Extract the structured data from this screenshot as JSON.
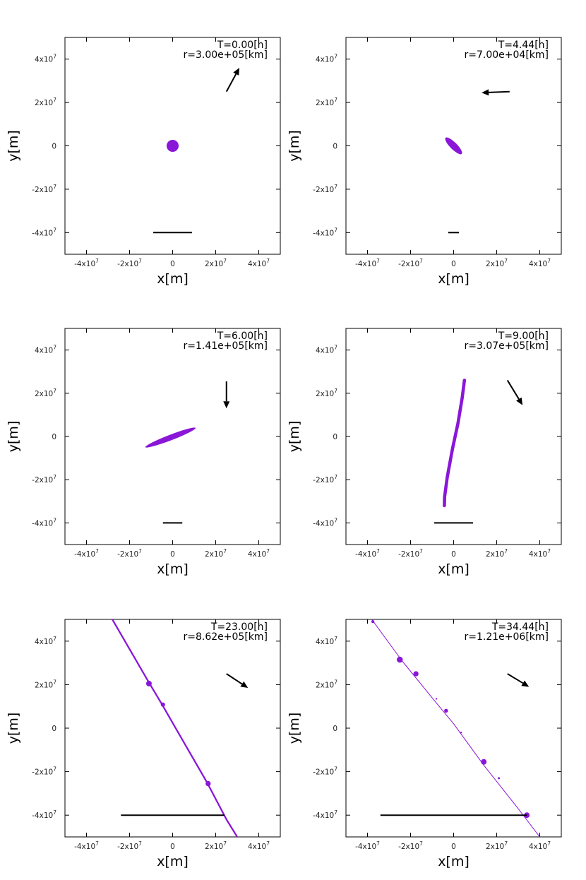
{
  "colors": {
    "body": "#8a16d8",
    "line": "#000000",
    "frame": "#000000"
  },
  "chart_data": [
    {
      "type": "scatter",
      "title_lines": [
        "T=0.00[h]",
        "r=3.00e+05[km]"
      ],
      "xlabel": "x[m]",
      "ylabel": "y[m]",
      "xlim": [
        -50000000,
        50000000
      ],
      "ylim": [
        -50000000,
        50000000
      ],
      "xticks": [
        -40000000,
        -20000000,
        0,
        20000000,
        40000000
      ],
      "yticks": [
        -40000000,
        -20000000,
        0,
        20000000,
        40000000
      ],
      "xtick_labels": [
        {
          "m": "-4x10",
          "e": "7"
        },
        {
          "m": "-2x10",
          "e": "7"
        },
        {
          "m": "0",
          "e": ""
        },
        {
          "m": "2x10",
          "e": "7"
        },
        {
          "m": "4x10",
          "e": "7"
        }
      ],
      "ytick_labels": [
        {
          "m": "-4x10",
          "e": "7"
        },
        {
          "m": "-2x10",
          "e": "7"
        },
        {
          "m": "0",
          "e": ""
        },
        {
          "m": "2x10",
          "e": "7"
        },
        {
          "m": "4x10",
          "e": "7"
        }
      ],
      "arrow": {
        "from": [
          25000000,
          25000000
        ],
        "to": [
          31000000,
          36000000
        ]
      },
      "scale_bar": {
        "x": [
          -9000000,
          9000000
        ],
        "y": -40000000
      },
      "series": [
        {
          "kind": "blob",
          "cx": 0,
          "cy": 0,
          "rx": 2800000,
          "ry": 2800000,
          "angle_deg": 0
        }
      ]
    },
    {
      "type": "scatter",
      "title_lines": [
        "T=4.44[h]",
        "r=7.00e+04[km]"
      ],
      "xlabel": "x[m]",
      "ylabel": "y[m]",
      "xlim": [
        -50000000,
        50000000
      ],
      "ylim": [
        -50000000,
        50000000
      ],
      "xticks": [
        -40000000,
        -20000000,
        0,
        20000000,
        40000000
      ],
      "yticks": [
        -40000000,
        -20000000,
        0,
        20000000,
        40000000
      ],
      "xtick_labels": [
        {
          "m": "-4x10",
          "e": "7"
        },
        {
          "m": "-2x10",
          "e": "7"
        },
        {
          "m": "0",
          "e": ""
        },
        {
          "m": "2x10",
          "e": "7"
        },
        {
          "m": "4x10",
          "e": "7"
        }
      ],
      "ytick_labels": [
        {
          "m": "-4x10",
          "e": "7"
        },
        {
          "m": "-2x10",
          "e": "7"
        },
        {
          "m": "0",
          "e": ""
        },
        {
          "m": "2x10",
          "e": "7"
        },
        {
          "m": "4x10",
          "e": "7"
        }
      ],
      "arrow": {
        "from": [
          26000000,
          25000000
        ],
        "to": [
          13000000,
          24500000
        ]
      },
      "scale_bar": {
        "x": [
          -2500000,
          2500000
        ],
        "y": -40000000
      },
      "series": [
        {
          "kind": "blob",
          "cx": 0,
          "cy": 0,
          "rx": 5300000,
          "ry": 1600000,
          "angle_deg": -45
        }
      ]
    },
    {
      "type": "scatter",
      "title_lines": [
        "T=6.00[h]",
        "r=1.41e+05[km]"
      ],
      "xlabel": "x[m]",
      "ylabel": "y[m]",
      "xlim": [
        -50000000,
        50000000
      ],
      "ylim": [
        -50000000,
        50000000
      ],
      "xticks": [
        -40000000,
        -20000000,
        0,
        20000000,
        40000000
      ],
      "yticks": [
        -40000000,
        -20000000,
        0,
        20000000,
        40000000
      ],
      "xtick_labels": [
        {
          "m": "-4x10",
          "e": "7"
        },
        {
          "m": "-2x10",
          "e": "7"
        },
        {
          "m": "0",
          "e": ""
        },
        {
          "m": "2x10",
          "e": "7"
        },
        {
          "m": "4x10",
          "e": "7"
        }
      ],
      "ytick_labels": [
        {
          "m": "-4x10",
          "e": "7"
        },
        {
          "m": "-2x10",
          "e": "7"
        },
        {
          "m": "0",
          "e": ""
        },
        {
          "m": "2x10",
          "e": "7"
        },
        {
          "m": "4x10",
          "e": "7"
        }
      ],
      "arrow": {
        "from": [
          25000000,
          25500000
        ],
        "to": [
          25000000,
          13000000
        ]
      },
      "scale_bar": {
        "x": [
          -4500000,
          4500000
        ],
        "y": -40000000
      },
      "series": [
        {
          "kind": "blob",
          "cx": -1000000,
          "cy": -500000,
          "rx": 12500000,
          "ry": 1300000,
          "angle_deg": 21
        }
      ]
    },
    {
      "type": "scatter",
      "title_lines": [
        "T=9.00[h]",
        "r=3.07e+05[km]"
      ],
      "xlabel": "x[m]",
      "ylabel": "y[m]",
      "xlim": [
        -50000000,
        50000000
      ],
      "ylim": [
        -50000000,
        50000000
      ],
      "xticks": [
        -40000000,
        -20000000,
        0,
        20000000,
        40000000
      ],
      "yticks": [
        -40000000,
        -20000000,
        0,
        20000000,
        40000000
      ],
      "xtick_labels": [
        {
          "m": "-4x10",
          "e": "7"
        },
        {
          "m": "-2x10",
          "e": "7"
        },
        {
          "m": "0",
          "e": ""
        },
        {
          "m": "2x10",
          "e": "7"
        },
        {
          "m": "4x10",
          "e": "7"
        }
      ],
      "ytick_labels": [
        {
          "m": "-4x10",
          "e": "7"
        },
        {
          "m": "-2x10",
          "e": "7"
        },
        {
          "m": "0",
          "e": ""
        },
        {
          "m": "2x10",
          "e": "7"
        },
        {
          "m": "4x10",
          "e": "7"
        }
      ],
      "arrow": {
        "from": [
          25000000,
          26000000
        ],
        "to": [
          32000000,
          14500000
        ]
      },
      "scale_bar": {
        "x": [
          -9000000,
          9000000
        ],
        "y": -40000000
      },
      "series": [
        {
          "kind": "stream",
          "width": 1500000,
          "points": [
            [
              5000000,
              26000000
            ],
            [
              4000000,
              18000000
            ],
            [
              2000000,
              6000000
            ],
            [
              -600000,
              -6000000
            ],
            [
              -3000000,
              -19000000
            ],
            [
              -4200000,
              -28000000
            ],
            [
              -4300000,
              -32000000
            ]
          ]
        }
      ]
    },
    {
      "type": "scatter",
      "title_lines": [
        "T=23.00[h]",
        "r=8.62e+05[km]"
      ],
      "xlabel": "x[m]",
      "ylabel": "y[m]",
      "xlim": [
        -50000000,
        50000000
      ],
      "ylim": [
        -50000000,
        50000000
      ],
      "xticks": [
        -40000000,
        -20000000,
        0,
        20000000,
        40000000
      ],
      "yticks": [
        -40000000,
        -20000000,
        0,
        20000000,
        40000000
      ],
      "xtick_labels": [
        {
          "m": "-4x10",
          "e": "7"
        },
        {
          "m": "-2x10",
          "e": "7"
        },
        {
          "m": "0",
          "e": ""
        },
        {
          "m": "2x10",
          "e": "7"
        },
        {
          "m": "4x10",
          "e": "7"
        }
      ],
      "ytick_labels": [
        {
          "m": "-4x10",
          "e": "7"
        },
        {
          "m": "-2x10",
          "e": "7"
        },
        {
          "m": "0",
          "e": ""
        },
        {
          "m": "2x10",
          "e": "7"
        },
        {
          "m": "4x10",
          "e": "7"
        }
      ],
      "arrow": {
        "from": [
          25000000,
          25000000
        ],
        "to": [
          35000000,
          18500000
        ]
      },
      "scale_bar": {
        "x": [
          -24000000,
          24000000
        ],
        "y": -40000000
      },
      "series": [
        {
          "kind": "stream",
          "width": 750000,
          "points": [
            [
              -28000000,
              50000000
            ],
            [
              -11000000,
              21000000
            ],
            [
              -5000000,
              11000000
            ],
            [
              2000000,
              -1000000
            ],
            [
              16000000,
              -25000000
            ],
            [
              25000000,
              -42000000
            ],
            [
              30000000,
              -50000000
            ]
          ]
        },
        {
          "kind": "dots",
          "points": [
            [
              -11000000,
              20500000,
              1300000
            ],
            [
              -4500000,
              10800000,
              1000000
            ],
            [
              16500000,
              -25500000,
              1200000
            ]
          ]
        }
      ]
    },
    {
      "type": "scatter",
      "title_lines": [
        "T=34.44[h]",
        "r=1.21e+06[km]"
      ],
      "xlabel": "x[m]",
      "ylabel": "y[m]",
      "xlim": [
        -50000000,
        50000000
      ],
      "ylim": [
        -50000000,
        50000000
      ],
      "xticks": [
        -40000000,
        -20000000,
        0,
        20000000,
        40000000
      ],
      "yticks": [
        -40000000,
        -20000000,
        0,
        20000000,
        40000000
      ],
      "xtick_labels": [
        {
          "m": "-4x10",
          "e": "7"
        },
        {
          "m": "-2x10",
          "e": "7"
        },
        {
          "m": "0",
          "e": ""
        },
        {
          "m": "2x10",
          "e": "7"
        },
        {
          "m": "4x10",
          "e": "7"
        }
      ],
      "ytick_labels": [
        {
          "m": "-4x10",
          "e": "7"
        },
        {
          "m": "-2x10",
          "e": "7"
        },
        {
          "m": "0",
          "e": ""
        },
        {
          "m": "2x10",
          "e": "7"
        },
        {
          "m": "4x10",
          "e": "7"
        }
      ],
      "arrow": {
        "from": [
          25000000,
          25000000
        ],
        "to": [
          35000000,
          19000000
        ]
      },
      "scale_bar": {
        "x": [
          -34000000,
          34000000
        ],
        "y": -40000000
      },
      "series": [
        {
          "kind": "stream",
          "width": 300000,
          "points": [
            [
              -38000000,
              50000000
            ],
            [
              -24000000,
              31000000
            ],
            [
              -10000000,
              14000000
            ],
            [
              0,
              2000000
            ],
            [
              14000000,
              -17000000
            ],
            [
              30000000,
              -37000000
            ],
            [
              40000000,
              -50000000
            ]
          ]
        },
        {
          "kind": "dots",
          "points": [
            [
              -37500000,
              49000000,
              700000
            ],
            [
              -25000000,
              31500000,
              1400000
            ],
            [
              -17500000,
              25000000,
              1200000
            ],
            [
              -3500000,
              8000000,
              900000
            ],
            [
              14000000,
              -15500000,
              1300000
            ],
            [
              34000000,
              -40000000,
              1300000
            ],
            [
              21000000,
              -23000000,
              500000
            ],
            [
              3500000,
              -2000000,
              400000
            ],
            [
              -8000000,
              13500000,
              400000
            ]
          ]
        }
      ]
    }
  ]
}
